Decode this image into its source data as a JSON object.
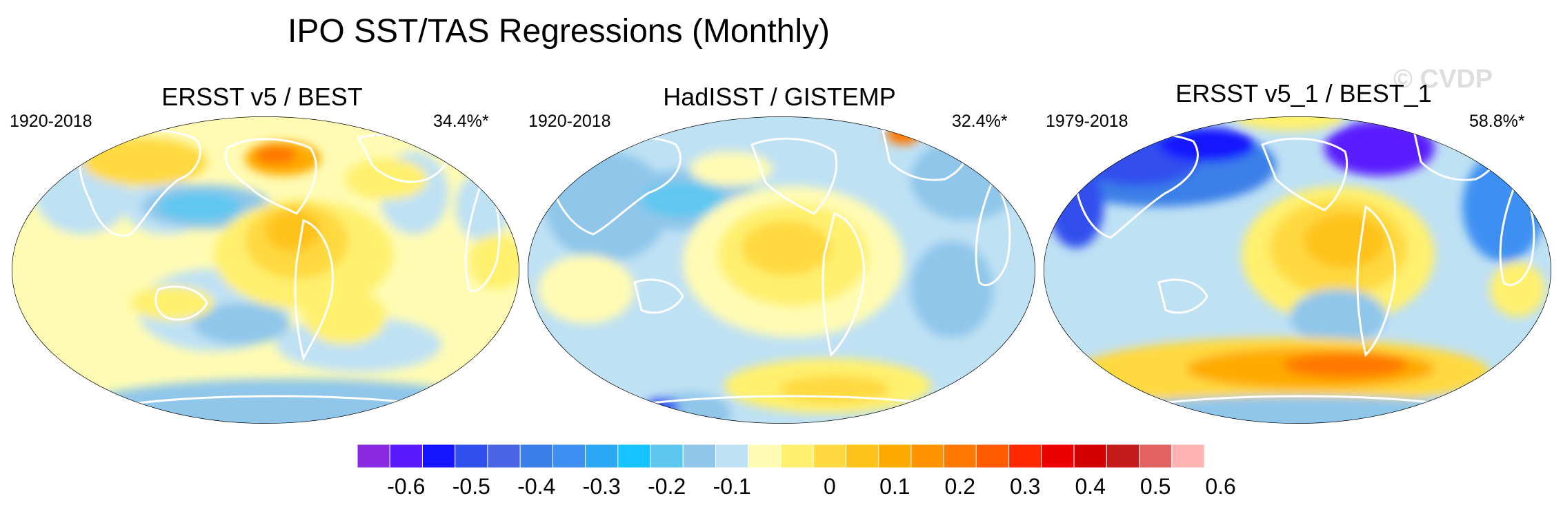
{
  "title": "IPO SST/TAS Regressions (Monthly)",
  "watermark": "© CVDP",
  "panels": [
    {
      "title": "ERSST v5 / BEST",
      "period": "1920-2018",
      "variance": "34.4%*"
    },
    {
      "title": "HadISST / GISTEMP",
      "period": "1920-2018",
      "variance": "32.4%*"
    },
    {
      "title": "ERSST v5_1 / BEST_1",
      "period": "1979-2018",
      "variance": "58.8%*"
    }
  ],
  "colorbar": {
    "colors": [
      "#8a2be2",
      "#5a1aff",
      "#1414ff",
      "#3050ee",
      "#4a64e6",
      "#3a7fe8",
      "#3d90f2",
      "#2aa8f5",
      "#14c3ff",
      "#5ec7f0",
      "#8fc6ea",
      "#bfe1f4",
      "#fffbb4",
      "#fff06e",
      "#ffd940",
      "#ffc21a",
      "#ffaa00",
      "#ff9200",
      "#ff7800",
      "#ff5a00",
      "#ff2800",
      "#ec0000",
      "#d20000",
      "#c41a1a",
      "#e26262",
      "#ffb2b2"
    ],
    "tick_labels": [
      "-0.6",
      "-0.5",
      "-0.4",
      "-0.3",
      "-0.2",
      "-0.1",
      "0",
      "0.1",
      "0.2",
      "0.3",
      "0.4",
      "0.5",
      "0.6"
    ]
  },
  "colors": {
    "land_outline": "#ffffff",
    "ocean_base": "#bfe1f4"
  }
}
